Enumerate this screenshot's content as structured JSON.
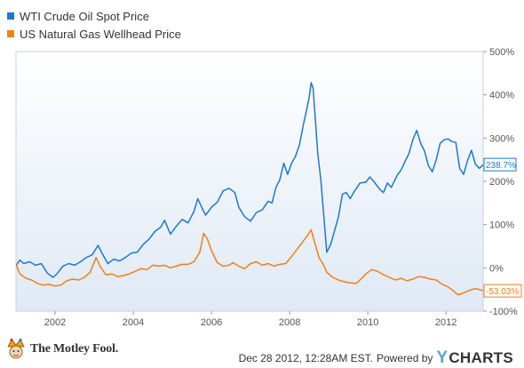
{
  "chart_data": {
    "type": "line",
    "title": "",
    "xlabel": "",
    "ylabel": "",
    "x_ticks": [
      "2002",
      "2004",
      "2006",
      "2008",
      "2010",
      "2012"
    ],
    "y_ticks": [
      "500%",
      "400%",
      "300%",
      "200%",
      "100%",
      "0%",
      "-100%"
    ],
    "xlim": [
      2001.0,
      2012.95
    ],
    "ylim": [
      -100,
      500
    ],
    "grid": false,
    "legend_position": "top-left",
    "series": [
      {
        "name": "WTI Crude Oil Spot Price",
        "color": "#1f78d1",
        "end_label": "238.7%",
        "points": [
          [
            2001.0,
            5
          ],
          [
            2001.1,
            18
          ],
          [
            2001.2,
            10
          ],
          [
            2001.35,
            14
          ],
          [
            2001.5,
            6
          ],
          [
            2001.65,
            10
          ],
          [
            2001.8,
            -12
          ],
          [
            2001.95,
            -22
          ],
          [
            2002.05,
            -14
          ],
          [
            2002.2,
            4
          ],
          [
            2002.35,
            10
          ],
          [
            2002.5,
            6
          ],
          [
            2002.65,
            14
          ],
          [
            2002.8,
            24
          ],
          [
            2002.95,
            30
          ],
          [
            2003.1,
            52
          ],
          [
            2003.2,
            34
          ],
          [
            2003.35,
            10
          ],
          [
            2003.5,
            20
          ],
          [
            2003.65,
            16
          ],
          [
            2003.8,
            24
          ],
          [
            2003.95,
            34
          ],
          [
            2004.1,
            36
          ],
          [
            2004.25,
            54
          ],
          [
            2004.4,
            66
          ],
          [
            2004.55,
            84
          ],
          [
            2004.7,
            94
          ],
          [
            2004.8,
            110
          ],
          [
            2004.95,
            78
          ],
          [
            2005.1,
            96
          ],
          [
            2005.25,
            112
          ],
          [
            2005.4,
            104
          ],
          [
            2005.55,
            130
          ],
          [
            2005.65,
            160
          ],
          [
            2005.75,
            140
          ],
          [
            2005.85,
            122
          ],
          [
            2006.0,
            140
          ],
          [
            2006.15,
            152
          ],
          [
            2006.3,
            178
          ],
          [
            2006.45,
            184
          ],
          [
            2006.6,
            174
          ],
          [
            2006.7,
            140
          ],
          [
            2006.85,
            118
          ],
          [
            2007.0,
            108
          ],
          [
            2007.15,
            128
          ],
          [
            2007.3,
            134
          ],
          [
            2007.45,
            154
          ],
          [
            2007.55,
            150
          ],
          [
            2007.65,
            186
          ],
          [
            2007.75,
            204
          ],
          [
            2007.85,
            242
          ],
          [
            2007.95,
            216
          ],
          [
            2008.05,
            242
          ],
          [
            2008.15,
            258
          ],
          [
            2008.25,
            284
          ],
          [
            2008.35,
            330
          ],
          [
            2008.45,
            372
          ],
          [
            2008.5,
            394
          ],
          [
            2008.55,
            428
          ],
          [
            2008.6,
            416
          ],
          [
            2008.65,
            354
          ],
          [
            2008.72,
            264
          ],
          [
            2008.8,
            202
          ],
          [
            2008.88,
            112
          ],
          [
            2008.95,
            36
          ],
          [
            2009.05,
            54
          ],
          [
            2009.15,
            86
          ],
          [
            2009.25,
            118
          ],
          [
            2009.35,
            170
          ],
          [
            2009.45,
            174
          ],
          [
            2009.55,
            160
          ],
          [
            2009.65,
            176
          ],
          [
            2009.8,
            196
          ],
          [
            2009.95,
            198
          ],
          [
            2010.05,
            210
          ],
          [
            2010.15,
            200
          ],
          [
            2010.3,
            182
          ],
          [
            2010.4,
            174
          ],
          [
            2010.5,
            196
          ],
          [
            2010.6,
            186
          ],
          [
            2010.75,
            214
          ],
          [
            2010.85,
            226
          ],
          [
            2010.95,
            246
          ],
          [
            2011.05,
            264
          ],
          [
            2011.15,
            296
          ],
          [
            2011.25,
            318
          ],
          [
            2011.35,
            288
          ],
          [
            2011.45,
            270
          ],
          [
            2011.55,
            236
          ],
          [
            2011.65,
            222
          ],
          [
            2011.75,
            250
          ],
          [
            2011.85,
            288
          ],
          [
            2011.95,
            296
          ],
          [
            2012.05,
            298
          ],
          [
            2012.15,
            292
          ],
          [
            2012.25,
            290
          ],
          [
            2012.35,
            230
          ],
          [
            2012.45,
            216
          ],
          [
            2012.55,
            248
          ],
          [
            2012.65,
            272
          ],
          [
            2012.75,
            240
          ],
          [
            2012.85,
            230
          ],
          [
            2012.95,
            238.7
          ]
        ]
      },
      {
        "name": "US Natural Gas Wellhead Price",
        "color": "#f07f1b",
        "end_label": "-53.03%",
        "points": [
          [
            2001.0,
            8
          ],
          [
            2001.1,
            -14
          ],
          [
            2001.25,
            -24
          ],
          [
            2001.4,
            -28
          ],
          [
            2001.55,
            -36
          ],
          [
            2001.7,
            -40
          ],
          [
            2001.85,
            -38
          ],
          [
            2002.0,
            -42
          ],
          [
            2002.15,
            -40
          ],
          [
            2002.3,
            -30
          ],
          [
            2002.45,
            -26
          ],
          [
            2002.6,
            -28
          ],
          [
            2002.75,
            -22
          ],
          [
            2002.9,
            -10
          ],
          [
            2003.05,
            24
          ],
          [
            2003.15,
            4
          ],
          [
            2003.3,
            -16
          ],
          [
            2003.45,
            -14
          ],
          [
            2003.6,
            -20
          ],
          [
            2003.75,
            -18
          ],
          [
            2003.9,
            -14
          ],
          [
            2004.05,
            -8
          ],
          [
            2004.2,
            -2
          ],
          [
            2004.35,
            -4
          ],
          [
            2004.5,
            6
          ],
          [
            2004.65,
            4
          ],
          [
            2004.8,
            6
          ],
          [
            2004.95,
            0
          ],
          [
            2005.1,
            4
          ],
          [
            2005.25,
            8
          ],
          [
            2005.4,
            8
          ],
          [
            2005.55,
            14
          ],
          [
            2005.7,
            36
          ],
          [
            2005.8,
            80
          ],
          [
            2005.9,
            66
          ],
          [
            2006.0,
            40
          ],
          [
            2006.15,
            12
          ],
          [
            2006.3,
            4
          ],
          [
            2006.45,
            6
          ],
          [
            2006.55,
            12
          ],
          [
            2006.7,
            4
          ],
          [
            2006.85,
            -2
          ],
          [
            2007.0,
            10
          ],
          [
            2007.15,
            14
          ],
          [
            2007.3,
            6
          ],
          [
            2007.45,
            10
          ],
          [
            2007.6,
            4
          ],
          [
            2007.75,
            8
          ],
          [
            2007.9,
            10
          ],
          [
            2008.05,
            26
          ],
          [
            2008.2,
            44
          ],
          [
            2008.35,
            62
          ],
          [
            2008.45,
            74
          ],
          [
            2008.55,
            88
          ],
          [
            2008.65,
            56
          ],
          [
            2008.75,
            24
          ],
          [
            2008.85,
            10
          ],
          [
            2008.95,
            -10
          ],
          [
            2009.1,
            -22
          ],
          [
            2009.3,
            -30
          ],
          [
            2009.5,
            -34
          ],
          [
            2009.7,
            -36
          ],
          [
            2009.85,
            -24
          ],
          [
            2009.95,
            -14
          ],
          [
            2010.1,
            -4
          ],
          [
            2010.25,
            -8
          ],
          [
            2010.4,
            -16
          ],
          [
            2010.55,
            -22
          ],
          [
            2010.7,
            -28
          ],
          [
            2010.85,
            -24
          ],
          [
            2011.0,
            -30
          ],
          [
            2011.15,
            -26
          ],
          [
            2011.3,
            -20
          ],
          [
            2011.45,
            -22
          ],
          [
            2011.6,
            -26
          ],
          [
            2011.75,
            -28
          ],
          [
            2011.9,
            -38
          ],
          [
            2012.05,
            -44
          ],
          [
            2012.2,
            -54
          ],
          [
            2012.3,
            -62
          ],
          [
            2012.45,
            -58
          ],
          [
            2012.6,
            -52
          ],
          [
            2012.75,
            -48
          ],
          [
            2012.85,
            -50
          ],
          [
            2012.95,
            -53.03
          ]
        ]
      }
    ]
  },
  "footer": {
    "logo_text": "The Motley Fool.",
    "timestamp": "Dec 28 2012, 12:28AM EST.",
    "powered_by": "Powered by",
    "brand_y": "Y",
    "brand_rest": "CHARTS"
  }
}
